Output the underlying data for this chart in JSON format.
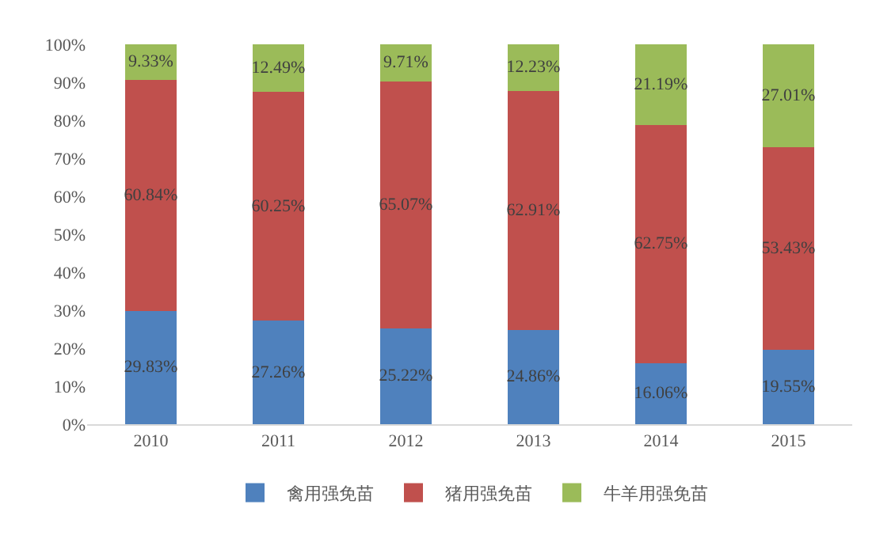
{
  "chart_data": {
    "type": "bar",
    "stacked": true,
    "categories": [
      "2010",
      "2011",
      "2012",
      "2013",
      "2014",
      "2015"
    ],
    "series": [
      {
        "name": "禽用强免苗",
        "color": "#4f81bd",
        "values": [
          29.83,
          27.26,
          25.22,
          24.86,
          16.06,
          19.55
        ],
        "value_labels": [
          "29.83%",
          "27.26%",
          "25.22%",
          "24.86%",
          "16.06%",
          "19.55%"
        ]
      },
      {
        "name": "猪用强免苗",
        "color": "#c0504d",
        "values": [
          60.84,
          60.25,
          65.07,
          62.91,
          62.75,
          53.43
        ],
        "value_labels": [
          "60.84%",
          "60.25%",
          "65.07%",
          "62.91%",
          "62.75%",
          "53.43%"
        ]
      },
      {
        "name": "牛羊用强免苗",
        "color": "#9bbb59",
        "values": [
          9.33,
          12.49,
          9.71,
          12.23,
          21.19,
          27.01
        ],
        "value_labels": [
          "9.33%",
          "12.49%",
          "9.71%",
          "12.23%",
          "21.19%",
          "27.01%"
        ]
      }
    ],
    "ylim": [
      0,
      100
    ],
    "yticks": [
      {
        "value": 0,
        "label": "0%"
      },
      {
        "value": 10,
        "label": "10%"
      },
      {
        "value": 20,
        "label": "20%"
      },
      {
        "value": 30,
        "label": "30%"
      },
      {
        "value": 40,
        "label": "40%"
      },
      {
        "value": 50,
        "label": "50%"
      },
      {
        "value": 60,
        "label": "60%"
      },
      {
        "value": 70,
        "label": "70%"
      },
      {
        "value": 80,
        "label": "80%"
      },
      {
        "value": 90,
        "label": "90%"
      },
      {
        "value": 100,
        "label": "100%"
      }
    ],
    "legend": "bottom",
    "grid": false
  }
}
